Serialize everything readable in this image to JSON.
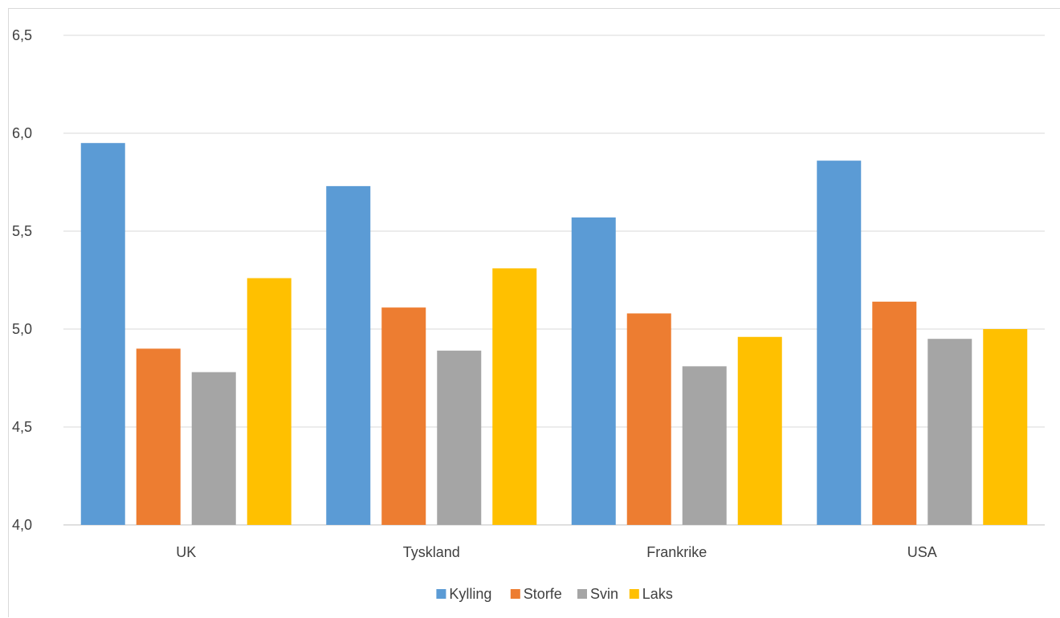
{
  "chart_data": {
    "type": "bar",
    "title": "",
    "xlabel": "",
    "ylabel": "",
    "categories": [
      "UK",
      "Tyskland",
      "Frankrike",
      "USA"
    ],
    "series": [
      {
        "name": "Kylling",
        "color": "#5b9bd5",
        "values": [
          5.95,
          5.73,
          5.57,
          5.86
        ]
      },
      {
        "name": "Storfe",
        "color": "#ed7d31",
        "values": [
          4.9,
          5.11,
          5.08,
          5.14
        ]
      },
      {
        "name": "Svin",
        "color": "#a5a5a5",
        "values": [
          4.78,
          4.89,
          4.81,
          4.95
        ]
      },
      {
        "name": "Laks",
        "color": "#ffc000",
        "values": [
          5.26,
          5.31,
          4.96,
          5.0
        ]
      }
    ],
    "ylim": [
      4.0,
      6.5
    ],
    "yticks": [
      "4,0",
      "4,5",
      "5,0",
      "5,5",
      "6,0",
      "6,5"
    ],
    "grid": true,
    "legend_position": "bottom"
  }
}
